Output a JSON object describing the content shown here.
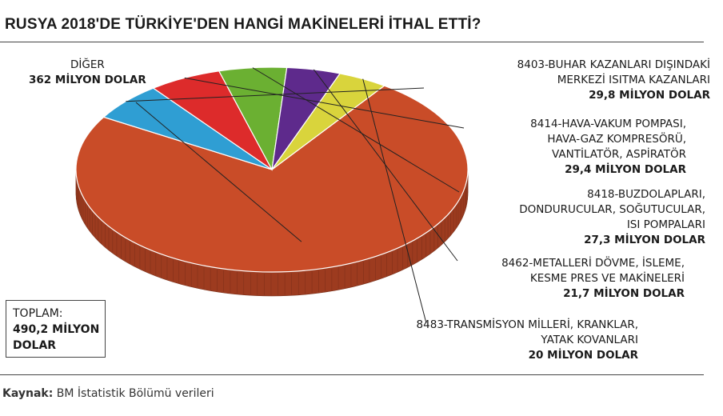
{
  "title": "RUSYA 2018'DE TÜRKİYE'DEN HANGİ MAKİNELERİ İTHAL ETTİ?",
  "total": {
    "label": "TOPLAM:",
    "value": "490,2 MİLYON\nDOLAR"
  },
  "source": {
    "label": "Kaynak:",
    "text": "BM İstatistik Bölümü verileri"
  },
  "chart_data": {
    "type": "pie",
    "unit": "MİLYON DOLAR",
    "slices": [
      {
        "name_lines": [
          "DİĞER"
        ],
        "value": 362,
        "value_text": "362 MİLYON DOLAR",
        "color": "#c94c28"
      },
      {
        "name_lines": [
          "8403-BUHAR KAZANLARI DIŞINDAKİ",
          "MERKEZİ ISITMA KAZANLARI"
        ],
        "value": 29.8,
        "value_text": "29,8 MİLYON DOLAR",
        "color": "#2f9ed3"
      },
      {
        "name_lines": [
          "8414-HAVA-VAKUM POMPASI,",
          "HAVA-GAZ KOMPRESÖRÜ,",
          "VANTİLATÖR, ASPİRATÖR"
        ],
        "value": 29.4,
        "value_text": "29,4 MİLYON DOLAR",
        "color": "#dd2b2b"
      },
      {
        "name_lines": [
          "8418-BUZDOLAPLARI,",
          "DONDURUCULAR, SOĞUTUCULAR,",
          "ISI POMPALARI"
        ],
        "value": 27.3,
        "value_text": "27,3 MİLYON DOLAR",
        "color": "#6bb032"
      },
      {
        "name_lines": [
          "8462-METALLERİ DÖVME, İSLEME,",
          "KESME PRES VE MAKİNELERİ"
        ],
        "value": 21.7,
        "value_text": "21,7 MİLYON DOLAR",
        "color": "#5e2a8c"
      },
      {
        "name_lines": [
          "8483-TRANSMİSYON MİLLERİ, KRANKLAR,",
          "YATAK KOVANLARI"
        ],
        "value": 20,
        "value_text": "20 MİLYON DOLAR",
        "color": "#d9d43c"
      }
    ]
  }
}
